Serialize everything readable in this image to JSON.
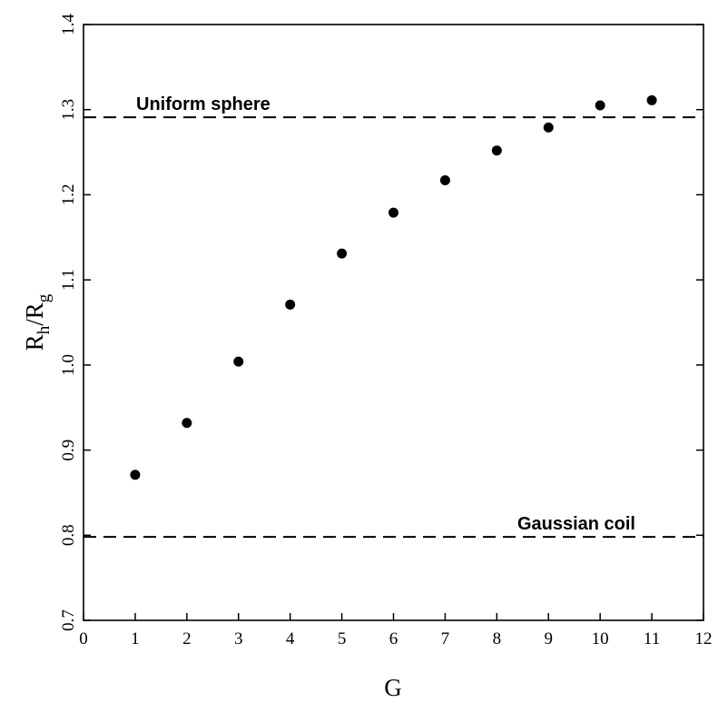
{
  "chart_data": {
    "type": "scatter",
    "title": "",
    "xlabel": "G",
    "ylabel": {
      "main": "R",
      "sub1": "h",
      "slash": "/R",
      "sub2": "g"
    },
    "xlim": [
      0,
      12
    ],
    "ylim": [
      0.7,
      1.4
    ],
    "xticks": [
      0,
      1,
      2,
      3,
      4,
      5,
      6,
      7,
      8,
      9,
      10,
      11,
      12
    ],
    "xtick_labels": [
      "0",
      "1",
      "2",
      "3",
      "4",
      "5",
      "6",
      "7",
      "8",
      "9",
      "10",
      "11",
      "12"
    ],
    "yticks": [
      0.7,
      0.8,
      0.9,
      1.0,
      1.1,
      1.2,
      1.3,
      1.4
    ],
    "ytick_labels": [
      "0.7",
      "0.8",
      "0.9",
      "1.0",
      "1.1",
      "1.2",
      "1.3",
      "1.4"
    ],
    "grid": false,
    "series": [
      {
        "x": [
          1,
          2,
          3,
          4,
          5,
          6,
          7,
          8,
          9,
          10,
          11
        ],
        "y": [
          0.871,
          0.932,
          1.004,
          1.071,
          1.131,
          1.179,
          1.217,
          1.252,
          1.279,
          1.305,
          1.311
        ],
        "color": "#000000",
        "marker": "filled-circle"
      }
    ],
    "reference_lines": [
      {
        "y": 1.291,
        "label": "Uniform sphere",
        "style": "dashed",
        "label_position": "above-left"
      },
      {
        "y": 0.798,
        "label": "Gaussian coil",
        "style": "dashed",
        "label_position": "above-right"
      }
    ]
  }
}
